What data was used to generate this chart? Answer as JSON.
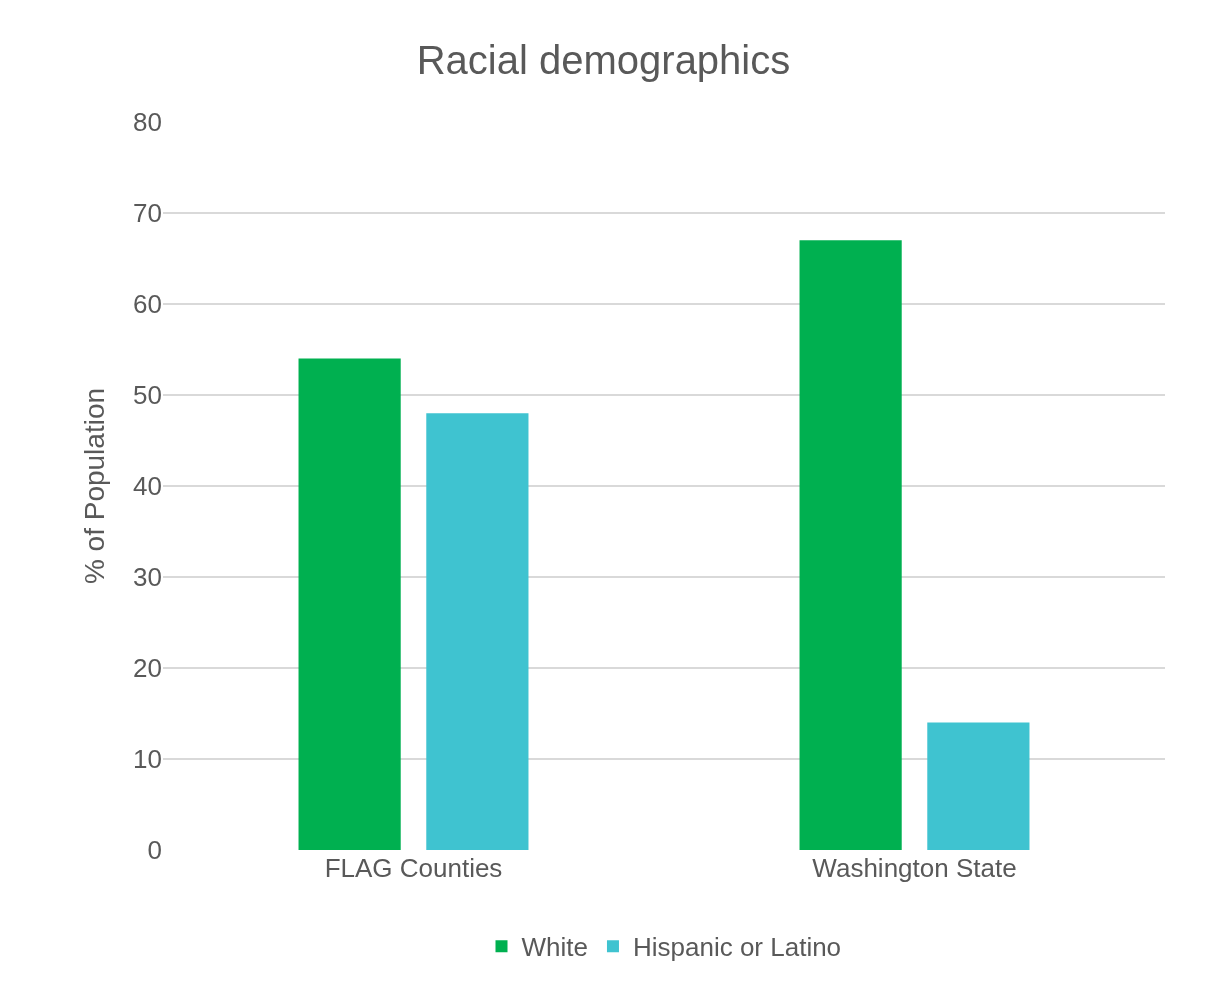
{
  "chart_data": {
    "type": "bar",
    "title": "Racial demographics",
    "ylabel": "% of Population",
    "categories": [
      "FLAG Counties",
      "Washington State"
    ],
    "series": [
      {
        "name": "White",
        "color": "#00b050",
        "values": [
          54,
          67
        ]
      },
      {
        "name": "Hispanic or Latino",
        "color": "#3fc3d0",
        "values": [
          48,
          14
        ]
      }
    ],
    "ylim": [
      0,
      80
    ],
    "yticks": [
      0,
      10,
      20,
      30,
      40,
      50,
      60,
      70,
      80
    ],
    "grid": "y",
    "legend": "bottom"
  }
}
